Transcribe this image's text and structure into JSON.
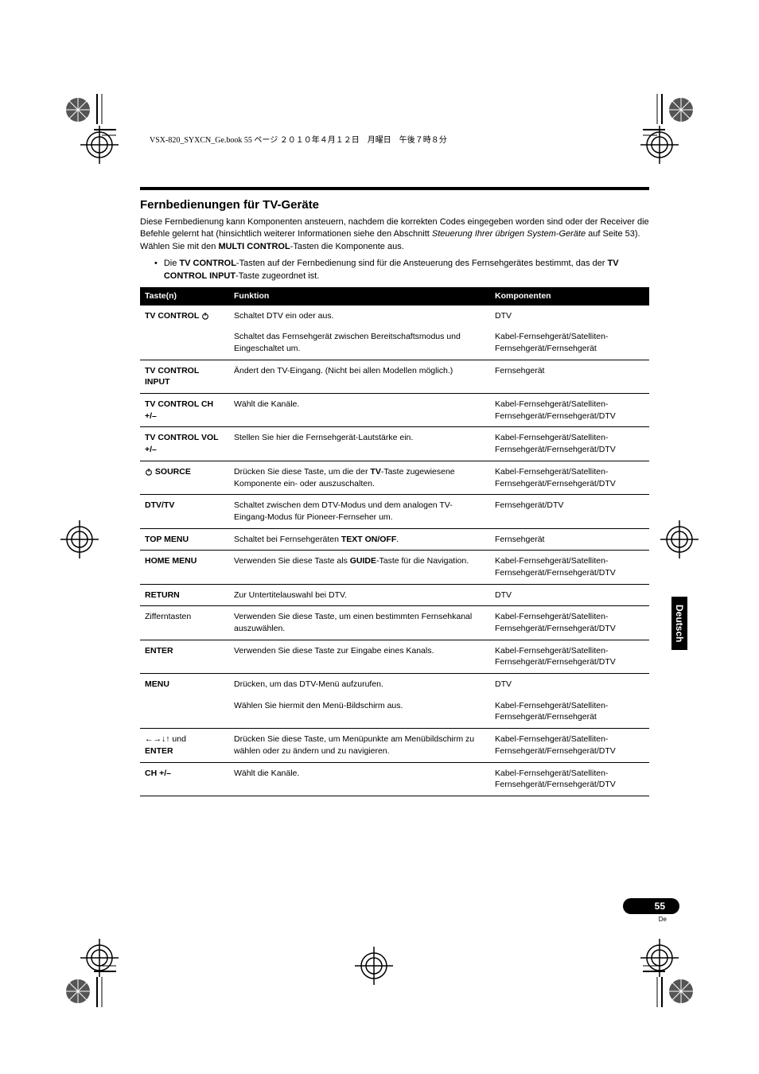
{
  "header_jp": "VSX-820_SYXCN_Ge.book  55 ページ  ２０１０年４月１２日　月曜日　午後７時８分",
  "side_tab": "Deutsch",
  "page_number": "55",
  "page_lang": "De",
  "title": "Fernbedienungen für TV-Geräte",
  "intro_parts": {
    "p1a": "Diese Fernbedienung kann Komponenten ansteuern, nachdem die korrekten Codes eingegeben worden sind oder der Receiver die Befehle gelernt hat (hinsichtlich weiterer Informationen siehe den Abschnitt ",
    "p1_italic": "Steuerung Ihrer übrigen System-Geräte",
    "p1b": " auf Seite 53). Wählen Sie mit den ",
    "p1_bold1": "MULTI CONTROL",
    "p1c": "-Tasten die Komponente aus."
  },
  "bullet": {
    "a": "Die ",
    "b1": "TV CONTROL",
    "b": "-Tasten auf der Fernbedienung sind für die Ansteuerung des Fernsehgerätes bestimmt, das der ",
    "b2": "TV CONTROL INPUT",
    "c": "-Taste zugeordnet ist."
  },
  "table": {
    "headers": {
      "key": "Taste(n)",
      "func": "Funktion",
      "comp": "Komponenten"
    },
    "rows": [
      {
        "key_html": "TV CONTROL <power>",
        "func": "Schaltet DTV ein oder aus.",
        "comp": "DTV",
        "noborder": true
      },
      {
        "key_html": "",
        "func": "Schaltet das Fernsehgerät zwischen Bereitschaftsmodus und Eingeschaltet um.",
        "comp": "Kabel-Fernsehgerät/Satelliten-Fernsehgerät/Fernsehgerät"
      },
      {
        "key_html": "TV CONTROL INPUT",
        "func": "Ändert den TV-Eingang. (Nicht bei allen Modellen möglich.)",
        "comp": "Fernsehgerät"
      },
      {
        "key_html": "TV CONTROL CH +/–",
        "func": "Wählt die Kanäle.",
        "comp": "Kabel-Fernsehgerät/Satelliten-Fernsehgerät/Fernsehgerät/DTV"
      },
      {
        "key_html": "TV CONTROL VOL +/–",
        "func": "Stellen Sie hier die Fernsehgerät-Lautstärke ein.",
        "comp": "Kabel-Fernsehgerät/Satelliten-Fernsehgerät/Fernsehgerät/DTV"
      },
      {
        "key_html": "<power> SOURCE",
        "func_parts": {
          "a": "Drücken Sie diese Taste, um die der ",
          "b": "TV",
          "c": "-Taste zugewiesene Komponente ein- oder auszuschalten."
        },
        "comp": "Kabel-Fernsehgerät/Satelliten-Fernsehgerät/Fernsehgerät/DTV"
      },
      {
        "key_html": "DTV/TV",
        "func": "Schaltet zwischen dem DTV-Modus und dem analogen TV-Eingang-Modus für Pioneer-Fernseher um.",
        "comp": "Fernsehgerät/DTV"
      },
      {
        "key_html": "TOP MENU",
        "func_parts": {
          "a": "Schaltet bei Fernsehgeräten ",
          "b": "TEXT ON/OFF",
          "c": "."
        },
        "comp": "Fernsehgerät"
      },
      {
        "key_html": "HOME MENU",
        "func_parts": {
          "a": "Verwenden Sie diese Taste als ",
          "b": "GUIDE",
          "c": "-Taste für die Navigation."
        },
        "comp": "Kabel-Fernsehgerät/Satelliten-Fernsehgerät/Fernsehgerät/DTV"
      },
      {
        "key_html": "RETURN",
        "func": "Zur Untertitelauswahl bei DTV.",
        "comp": "DTV"
      },
      {
        "key_plain": "Zifferntasten",
        "func": "Verwenden Sie diese Taste, um einen bestimmten Fernsehkanal auszuwählen.",
        "comp": "Kabel-Fernsehgerät/Satelliten-Fernsehgerät/Fernsehgerät/DTV"
      },
      {
        "key_html": "ENTER",
        "func": "Verwenden Sie diese Taste zur Eingabe eines Kanals.",
        "comp": "Kabel-Fernsehgerät/Satelliten-Fernsehgerät/Fernsehgerät/DTV"
      },
      {
        "key_html": "MENU",
        "func": "Drücken, um das DTV-Menü aufzurufen.",
        "comp": "DTV",
        "noborder": true
      },
      {
        "key_html": "",
        "func": "Wählen Sie hiermit den Menü-Bildschirm aus.",
        "comp": "Kabel-Fernsehgerät/Satelliten-Fernsehgerät/Fernsehgerät"
      },
      {
        "key_arrows": true,
        "key_suffix_plain": " und",
        "key_line2": "ENTER",
        "func": "Drücken Sie diese Taste, um Menüpunkte am Menübildschirm zu wählen oder zu ändern und zu navigieren.",
        "comp": "Kabel-Fernsehgerät/Satelliten-Fernsehgerät/Fernsehgerät/DTV"
      },
      {
        "key_html": "CH +/–",
        "func": "Wählt die Kanäle.",
        "comp": "Kabel-Fernsehgerät/Satelliten-Fernsehgerät/Fernsehgerät/DTV"
      }
    ]
  }
}
